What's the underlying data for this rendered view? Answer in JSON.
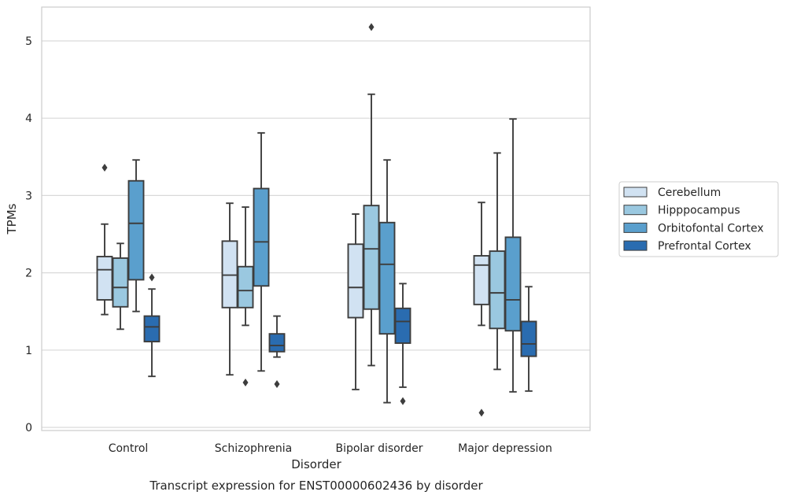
{
  "chart_data": {
    "type": "boxplot",
    "xlabel": "Disorder",
    "ylabel": "TPMs",
    "caption": "Transcript expression for ENST00000602436 by disorder",
    "ylim": [
      -0.05,
      5.45
    ],
    "yticks": [
      0,
      1,
      2,
      3,
      4,
      5
    ],
    "grid": "horizontal",
    "legend_position": "right",
    "categories": [
      "Control",
      "Schizophrenia",
      "Bipolar disorder",
      "Major depression"
    ],
    "series": [
      {
        "name": "Cerebellum",
        "color": "#d1e2f2",
        "boxes": [
          {
            "whislo": 1.46,
            "q1": 1.65,
            "med": 2.04,
            "q3": 2.21,
            "whishi": 2.63,
            "fliers": [
              3.36
            ]
          },
          {
            "whislo": 0.68,
            "q1": 1.55,
            "med": 1.97,
            "q3": 2.41,
            "whishi": 2.9,
            "fliers": []
          },
          {
            "whislo": 0.49,
            "q1": 1.42,
            "med": 1.81,
            "q3": 2.37,
            "whishi": 2.76,
            "fliers": []
          },
          {
            "whislo": 1.32,
            "q1": 1.59,
            "med": 2.1,
            "q3": 2.22,
            "whishi": 2.91,
            "fliers": [
              0.19
            ]
          }
        ]
      },
      {
        "name": "Hipppocampus",
        "color": "#9ac8e0",
        "boxes": [
          {
            "whislo": 1.27,
            "q1": 1.56,
            "med": 1.81,
            "q3": 2.19,
            "whishi": 2.38,
            "fliers": []
          },
          {
            "whislo": 1.32,
            "q1": 1.55,
            "med": 1.77,
            "q3": 2.08,
            "whishi": 2.85,
            "fliers": [
              0.58
            ]
          },
          {
            "whislo": 0.8,
            "q1": 1.53,
            "med": 2.31,
            "q3": 2.87,
            "whishi": 4.31,
            "fliers": [
              5.18
            ]
          },
          {
            "whislo": 0.75,
            "q1": 1.28,
            "med": 1.74,
            "q3": 2.28,
            "whishi": 3.55,
            "fliers": []
          }
        ]
      },
      {
        "name": "Orbitofontal Cortex",
        "color": "#5a9fcd",
        "boxes": [
          {
            "whislo": 1.5,
            "q1": 1.91,
            "med": 2.64,
            "q3": 3.19,
            "whishi": 3.46,
            "fliers": []
          },
          {
            "whislo": 0.73,
            "q1": 1.83,
            "med": 2.4,
            "q3": 3.09,
            "whishi": 3.81,
            "fliers": []
          },
          {
            "whislo": 0.32,
            "q1": 1.21,
            "med": 2.11,
            "q3": 2.65,
            "whishi": 3.46,
            "fliers": []
          },
          {
            "whislo": 0.46,
            "q1": 1.25,
            "med": 1.65,
            "q3": 2.46,
            "whishi": 3.99,
            "fliers": []
          }
        ]
      },
      {
        "name": "Prefrontal Cortex",
        "color": "#2a6cb0",
        "boxes": [
          {
            "whislo": 0.66,
            "q1": 1.11,
            "med": 1.3,
            "q3": 1.44,
            "whishi": 1.79,
            "fliers": [
              1.94
            ]
          },
          {
            "whislo": 0.91,
            "q1": 0.98,
            "med": 1.06,
            "q3": 1.21,
            "whishi": 1.44,
            "fliers": [
              0.56
            ]
          },
          {
            "whislo": 0.52,
            "q1": 1.09,
            "med": 1.37,
            "q3": 1.54,
            "whishi": 1.86,
            "fliers": [
              0.34
            ]
          },
          {
            "whislo": 0.47,
            "q1": 0.92,
            "med": 1.08,
            "q3": 1.37,
            "whishi": 1.82,
            "fliers": []
          }
        ]
      }
    ],
    "colors": {
      "grid": "#d9d9d9",
      "frame": "#cccccc",
      "line": "#3d3d3d",
      "text": "#262626"
    }
  }
}
